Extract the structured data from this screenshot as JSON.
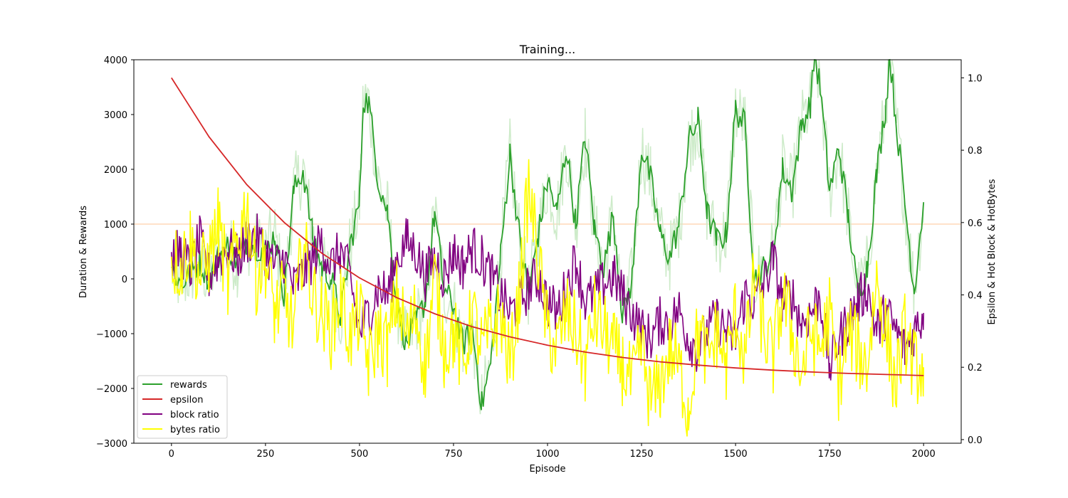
{
  "chart_data": {
    "type": "line",
    "title": "Training...",
    "xlabel": "Episode",
    "ylabel_left": "Duration & Rewards",
    "ylabel_right": "Epsilon & Hot Block & HotBytes",
    "xlim": [
      -100,
      2100
    ],
    "ylim_left": [
      -3000,
      4000
    ],
    "ylim_right": [
      -0.01,
      1.05
    ],
    "x_ticks": [
      0,
      250,
      500,
      750,
      1000,
      1250,
      1500,
      1750,
      2000
    ],
    "y_left_ticks": [
      -3000,
      -2000,
      -1000,
      0,
      1000,
      2000,
      3000,
      4000
    ],
    "y_right_ticks": [
      0.0,
      0.2,
      0.4,
      0.6,
      0.8,
      1.0
    ],
    "x_tick_labels": [
      "0",
      "250",
      "500",
      "750",
      "1000",
      "1250",
      "1500",
      "1750",
      "2000"
    ],
    "y_left_tick_labels": [
      "−3000",
      "−2000",
      "−1000",
      "0",
      "1000",
      "2000",
      "3000",
      "4000"
    ],
    "y_right_tick_labels": [
      "0.0",
      "0.2",
      "0.4",
      "0.6",
      "0.8",
      "1.0"
    ],
    "grid": false,
    "legend_position": "bottom-left",
    "reference_line": {
      "axis": "left",
      "y": 1000,
      "color": "#ffd8b8"
    },
    "series": [
      {
        "name": "rewards",
        "axis": "left",
        "color": "#2ca02c",
        "raw_color": "#cdebc9",
        "x": [
          0,
          25,
          50,
          75,
          100,
          125,
          150,
          175,
          200,
          225,
          250,
          275,
          300,
          325,
          350,
          375,
          400,
          425,
          450,
          475,
          500,
          510,
          525,
          550,
          575,
          600,
          625,
          650,
          675,
          700,
          725,
          750,
          775,
          800,
          825,
          850,
          875,
          900,
          925,
          950,
          975,
          1000,
          1025,
          1050,
          1075,
          1100,
          1125,
          1150,
          1175,
          1200,
          1225,
          1250,
          1275,
          1300,
          1325,
          1350,
          1375,
          1400,
          1425,
          1450,
          1475,
          1500,
          1525,
          1550,
          1575,
          1600,
          1625,
          1650,
          1675,
          1700,
          1710,
          1725,
          1750,
          1775,
          1800,
          1825,
          1850,
          1875,
          1900,
          1910,
          1925,
          1950,
          1975,
          2000
        ],
        "values": [
          200,
          -100,
          100,
          300,
          0,
          400,
          600,
          300,
          700,
          600,
          500,
          800,
          -300,
          1600,
          2000,
          800,
          200,
          0,
          -700,
          600,
          1400,
          3300,
          3200,
          1800,
          1200,
          -500,
          -1200,
          -800,
          -400,
          1200,
          -200,
          -500,
          -1200,
          -900,
          -2300,
          -1500,
          400,
          2300,
          800,
          -300,
          800,
          1800,
          1200,
          2400,
          1000,
          2600,
          900,
          200,
          1200,
          -700,
          0,
          2400,
          1800,
          800,
          400,
          1000,
          2500,
          2900,
          1200,
          700,
          800,
          3100,
          2800,
          0,
          200,
          500,
          2000,
          1600,
          2800,
          3200,
          4100,
          3500,
          1600,
          2400,
          1100,
          -300,
          200,
          1900,
          3200,
          4100,
          3000,
          1400,
          -200,
          1400
        ]
      },
      {
        "name": "epsilon",
        "axis": "right",
        "color": "#d62728",
        "x": [
          0,
          100,
          200,
          300,
          400,
          500,
          600,
          700,
          800,
          900,
          1000,
          1100,
          1200,
          1300,
          1400,
          1500,
          1600,
          1700,
          1800,
          1900,
          2000
        ],
        "values": [
          1.0,
          0.837,
          0.705,
          0.6,
          0.515,
          0.447,
          0.392,
          0.348,
          0.312,
          0.284,
          0.261,
          0.242,
          0.227,
          0.215,
          0.206,
          0.198,
          0.192,
          0.187,
          0.183,
          0.18,
          0.177
        ]
      },
      {
        "name": "block ratio",
        "axis": "right",
        "color": "#800080",
        "x": [
          0,
          25,
          50,
          75,
          100,
          125,
          150,
          175,
          200,
          225,
          250,
          275,
          300,
          325,
          350,
          375,
          400,
          425,
          450,
          475,
          500,
          525,
          550,
          575,
          600,
          625,
          650,
          675,
          700,
          725,
          750,
          775,
          800,
          825,
          850,
          875,
          900,
          925,
          950,
          975,
          1000,
          1025,
          1050,
          1075,
          1100,
          1125,
          1150,
          1175,
          1200,
          1225,
          1250,
          1275,
          1300,
          1325,
          1350,
          1375,
          1400,
          1425,
          1450,
          1475,
          1500,
          1525,
          1550,
          1575,
          1600,
          1625,
          1650,
          1675,
          1700,
          1725,
          1750,
          1775,
          1800,
          1825,
          1850,
          1875,
          1900,
          1925,
          1950,
          1975,
          2000
        ],
        "values": [
          0.5,
          0.52,
          0.47,
          0.55,
          0.45,
          0.5,
          0.53,
          0.5,
          0.55,
          0.56,
          0.52,
          0.48,
          0.5,
          0.42,
          0.46,
          0.5,
          0.55,
          0.48,
          0.52,
          0.45,
          0.3,
          0.35,
          0.42,
          0.4,
          0.5,
          0.55,
          0.52,
          0.45,
          0.5,
          0.45,
          0.52,
          0.48,
          0.53,
          0.5,
          0.45,
          0.4,
          0.35,
          0.38,
          0.42,
          0.45,
          0.38,
          0.35,
          0.42,
          0.5,
          0.38,
          0.4,
          0.43,
          0.45,
          0.4,
          0.35,
          0.3,
          0.28,
          0.33,
          0.32,
          0.36,
          0.28,
          0.25,
          0.3,
          0.33,
          0.3,
          0.28,
          0.4,
          0.38,
          0.43,
          0.5,
          0.38,
          0.4,
          0.32,
          0.35,
          0.4,
          0.2,
          0.28,
          0.33,
          0.38,
          0.42,
          0.3,
          0.35,
          0.3,
          0.25,
          0.3,
          0.35
        ]
      },
      {
        "name": "bytes ratio",
        "axis": "right",
        "color": "#ffff00",
        "x": [
          0,
          25,
          50,
          75,
          100,
          125,
          150,
          175,
          200,
          225,
          250,
          275,
          300,
          325,
          350,
          375,
          400,
          425,
          450,
          475,
          500,
          525,
          550,
          575,
          600,
          625,
          650,
          675,
          700,
          725,
          750,
          775,
          800,
          825,
          850,
          875,
          900,
          925,
          950,
          975,
          1000,
          1025,
          1050,
          1075,
          1100,
          1125,
          1150,
          1175,
          1200,
          1225,
          1250,
          1275,
          1300,
          1325,
          1350,
          1375,
          1400,
          1425,
          1450,
          1475,
          1500,
          1525,
          1550,
          1575,
          1600,
          1625,
          1650,
          1675,
          1700,
          1725,
          1750,
          1775,
          1800,
          1825,
          1850,
          1875,
          1900,
          1925,
          1950,
          1975,
          2000
        ],
        "values": [
          0.5,
          0.48,
          0.55,
          0.45,
          0.5,
          0.6,
          0.42,
          0.55,
          0.65,
          0.45,
          0.5,
          0.35,
          0.4,
          0.3,
          0.55,
          0.4,
          0.35,
          0.3,
          0.4,
          0.28,
          0.35,
          0.2,
          0.3,
          0.25,
          0.4,
          0.28,
          0.35,
          0.2,
          0.45,
          0.25,
          0.3,
          0.2,
          0.35,
          0.25,
          0.3,
          0.35,
          0.2,
          0.4,
          0.7,
          0.5,
          0.3,
          0.25,
          0.35,
          0.3,
          0.2,
          0.35,
          0.3,
          0.25,
          0.2,
          0.15,
          0.25,
          0.1,
          0.15,
          0.25,
          0.2,
          0.08,
          0.3,
          0.22,
          0.3,
          0.2,
          0.35,
          0.22,
          0.45,
          0.3,
          0.22,
          0.4,
          0.3,
          0.18,
          0.3,
          0.25,
          0.35,
          0.15,
          0.3,
          0.25,
          0.2,
          0.45,
          0.3,
          0.15,
          0.3,
          0.2,
          0.2
        ]
      }
    ]
  }
}
